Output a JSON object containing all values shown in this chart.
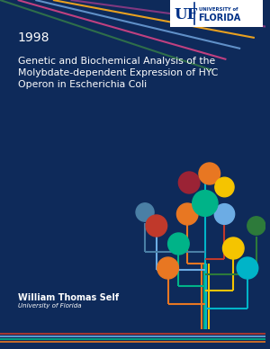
{
  "bg_color": "#0e2a5a",
  "white": "#ffffff",
  "year": "1998",
  "title_line1": "Genetic and Biochemical Analysis of the",
  "title_line2": "Molybdate-dependent Expression of HYC",
  "title_line3": "Operon in Escherichia Coli",
  "author": "William Thomas Self",
  "institution": "University of Florida",
  "logo_bg": "#ffffff",
  "uf_blue": "#003087",
  "fig_width": 3.0,
  "fig_height": 3.88,
  "diag_colors": [
    "#e8a020",
    "#c8004a",
    "#5b8fc8",
    "#2e7d5a",
    "#8b5090"
  ],
  "branch_colors": {
    "orange": "#e87722",
    "red": "#c0392b",
    "dark_red": "#9b2335",
    "blue": "#6cace4",
    "teal": "#00b4c8",
    "green": "#00b388",
    "dark_green": "#2d7a3a",
    "yellow": "#f5c400",
    "light_blue": "#7ec8e3",
    "gray_blue": "#4a7fa5",
    "white_node": "#d0d8e8"
  }
}
